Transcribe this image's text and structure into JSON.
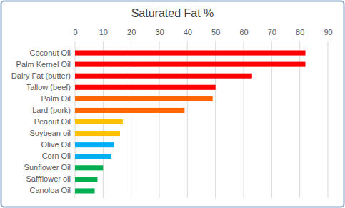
{
  "chart_data": {
    "type": "bar",
    "orientation": "horizontal",
    "title": "Saturated Fat %",
    "categories": [
      "Coconut Oil",
      "Palm Kernel Oil",
      "Dairy Fat (butter)",
      "Tallow (beef)",
      "Palm Oil",
      "Lard (pork)",
      "Peanut Oil",
      "Soybean oil",
      "Olive Oil",
      "Corn Oil",
      "Sunflower Oil",
      "Saffflower oil",
      "Canoloa Oil"
    ],
    "values": [
      82,
      82,
      63,
      50,
      49,
      39,
      17,
      16,
      14,
      13,
      10,
      8,
      7
    ],
    "colors": [
      "#ff0000",
      "#ff0000",
      "#ff0000",
      "#ff0000",
      "#ff6600",
      "#ff6600",
      "#ffc000",
      "#ffc000",
      "#00b0f0",
      "#00b0f0",
      "#00b050",
      "#00b050",
      "#00b050"
    ],
    "xlim": [
      0,
      90
    ],
    "xticks": [
      0,
      10,
      20,
      30,
      40,
      50,
      60,
      70,
      80,
      90
    ],
    "grid": true
  }
}
